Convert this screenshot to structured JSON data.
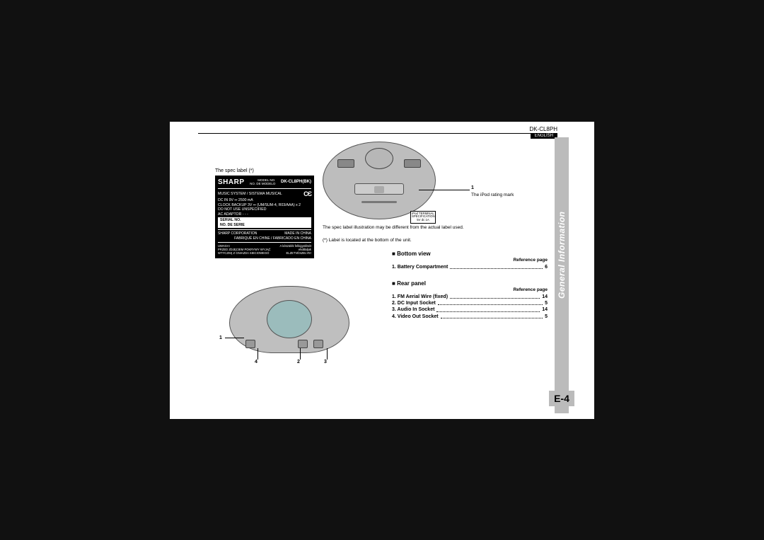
{
  "header": {
    "model": "DK-CL8PH",
    "language_badge": "ENGLISH"
  },
  "sidebar": {
    "title": "General Information"
  },
  "page_no": "E-4",
  "spec_label_caption": "The spec label (*)",
  "spec_label": {
    "brand": "SHARP",
    "model_no_lbl": "MODEL NO.\nNO. DE MODELO",
    "model_no": "DK-CL8PH(BK)",
    "line1": "MUSIC SYSTEM / SISTEMA MUSICAL",
    "line2": "DC IN 9V ⎓ 2500 mA",
    "line3": "CLOCK BACKUP 3V ⎓ (UM/SUM-4, R03/AAA) x 2",
    "line4": "DO NOT USE UNSPECIFIED",
    "line5": "AC ADAPTOR - - -",
    "serial_lbl1": "SERIAL NO.",
    "serial_lbl2": "NO. DE SERIE",
    "corp": "SHARP CORPORATION",
    "made": "MADE IN CHINA",
    "made2": "FABRIQUÉ EN CHINE / FABRICADO EN CHINA",
    "warn_pl": "UWAGA!\nPRZED ZDJĘCIEM POKRYWY WYJĄĆ\nWTYCZKĘ Z GNIAZDA SIECIOWEGO",
    "warn_hu": "A készülék felbigyelését\nelvállaljuk\nELZETVÉSZELYE!"
  },
  "callout1": {
    "num": "1",
    "text": "The iPod rating mark"
  },
  "ipod_label": {
    "l1": "iPod TERMINAL",
    "l2": "SPECIFICATION",
    "l3": "5V dc 1A"
  },
  "note1": "The spec label illustration may be different from the actual label used.",
  "note2": "(*) Label is located at the bottom of the unit.",
  "sections": {
    "bottom": {
      "title": "Bottom view",
      "ref": "Reference page",
      "items": [
        {
          "n": "1.",
          "name": "Battery Compartment",
          "page": "6"
        }
      ]
    },
    "rear": {
      "title": "Rear panel",
      "ref": "Reference page",
      "items": [
        {
          "n": "1.",
          "name": "FM Aerial Wire (fixed)",
          "page": "14"
        },
        {
          "n": "2.",
          "name": "DC Input Socket",
          "page": "5"
        },
        {
          "n": "3.",
          "name": "Audio In Socket",
          "page": "14"
        },
        {
          "n": "4.",
          "name": "Video Out Socket",
          "page": "5"
        }
      ]
    }
  },
  "rear_nums": {
    "n1": "1",
    "n2": "2",
    "n3": "3",
    "n4": "4"
  }
}
